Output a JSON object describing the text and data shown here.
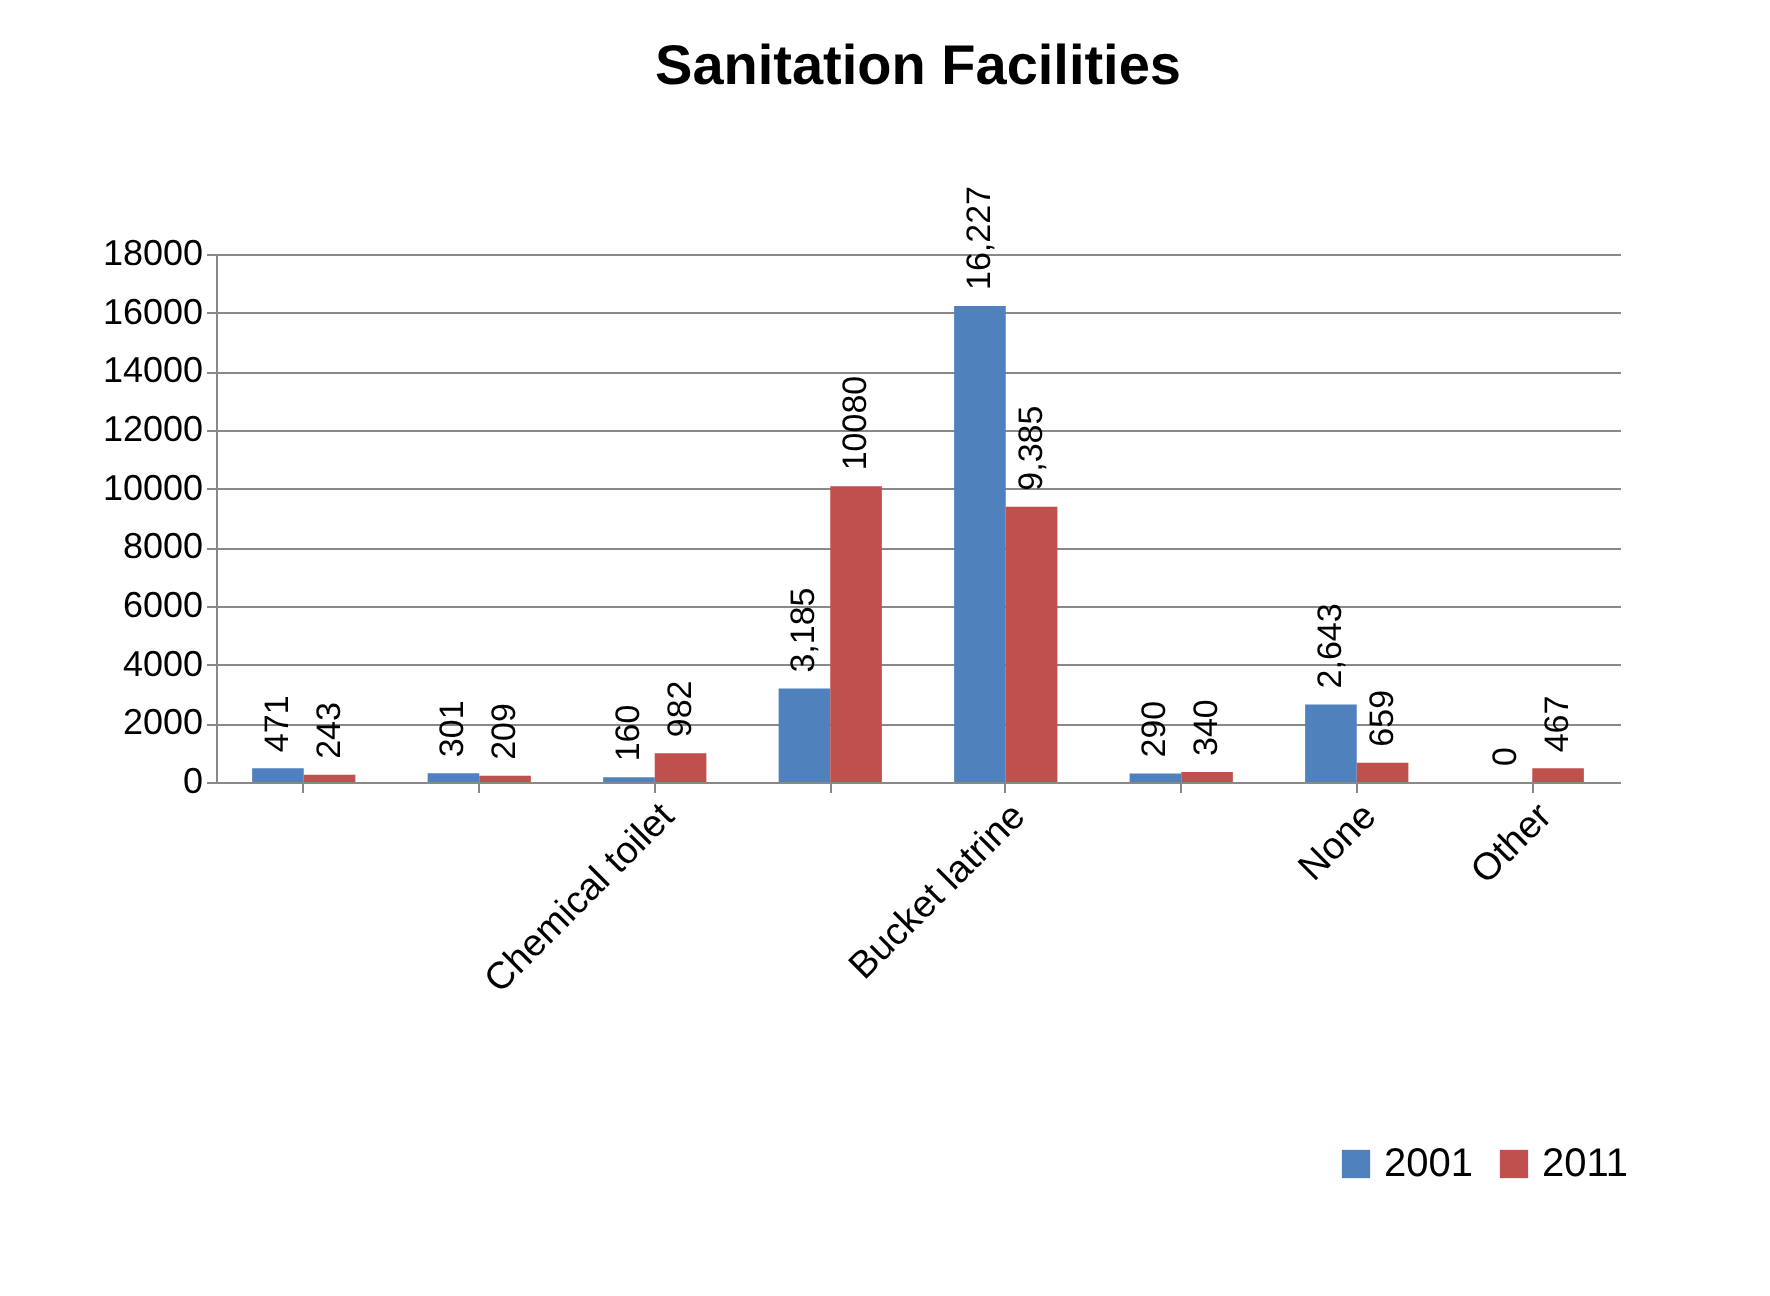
{
  "chart_data": {
    "type": "bar",
    "title": "Sanitation Facilities",
    "categories": [
      null,
      null,
      "Chemical toilet",
      null,
      "Bucket latrine",
      null,
      "None",
      "Other"
    ],
    "series": [
      {
        "name": "2001",
        "color": "#4f81bd",
        "values": [
          471,
          301,
          160,
          3185,
          16227,
          290,
          2643,
          0
        ],
        "value_labels": [
          "471",
          "301",
          "160",
          "3,185",
          "16,227",
          "290",
          "2,643",
          "0"
        ]
      },
      {
        "name": "2011",
        "color": "#c0504d",
        "values": [
          243,
          209,
          982,
          10080,
          9385,
          340,
          659,
          467
        ],
        "value_labels": [
          "243",
          "209",
          "982",
          "10080",
          "9,385",
          "340",
          "659",
          "467"
        ]
      }
    ],
    "ylim": [
      0,
      18000
    ],
    "yticks": [
      0,
      2000,
      4000,
      6000,
      8000,
      10000,
      12000,
      14000,
      16000,
      18000
    ],
    "grid": "y",
    "legend": "bottom right"
  }
}
